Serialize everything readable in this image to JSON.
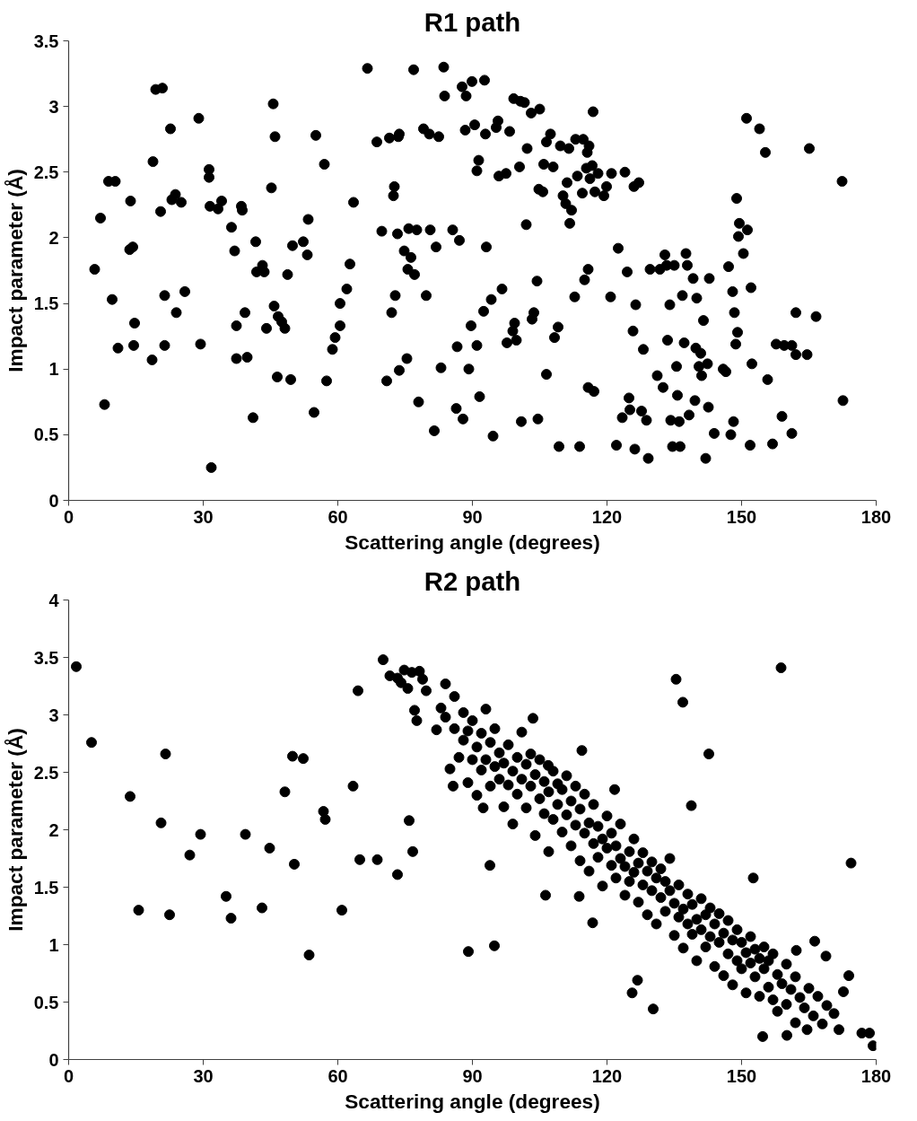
{
  "chart_data": [
    {
      "type": "scatter",
      "title": "R1 path",
      "xlabel": "Scattering angle (degrees)",
      "ylabel": "Impact parameter (Å)",
      "xlim": [
        0,
        180
      ],
      "ylim": [
        0,
        3.5
      ],
      "xticks": [
        0,
        30,
        60,
        90,
        120,
        150,
        180
      ],
      "yticks": [
        0,
        0.5,
        1,
        1.5,
        2,
        2.5,
        3,
        3.5
      ],
      "grid": false,
      "marker": "circle",
      "series": [
        {
          "color": "#000000",
          "x": [
            5.8,
            7.1,
            8.0,
            8.9,
            9.7,
            10.4,
            11.0,
            13.6,
            13.8,
            14.3,
            14.5,
            14.7,
            18.6,
            18.8,
            19.4,
            20.5,
            20.9,
            21.4,
            21.4,
            22.7,
            23.0,
            23.8,
            24.0,
            25.1,
            25.9,
            29.0,
            29.4,
            31.3,
            31.3,
            31.5,
            31.8,
            33.3,
            34.1,
            36.3,
            37.0,
            37.4,
            37.4,
            38.5,
            38.7,
            39.3,
            39.8,
            41.1,
            41.7,
            41.9,
            43.2,
            43.6,
            44.1,
            45.2,
            45.6,
            45.8,
            46.0,
            46.5,
            46.7,
            47.5,
            48.2,
            48.8,
            49.5,
            49.9,
            52.3,
            53.2,
            53.4,
            54.7,
            55.1,
            57.0,
            57.5,
            58.8,
            59.4,
            60.5,
            60.5,
            62.0,
            62.7,
            63.5,
            66.6,
            68.7,
            69.8,
            70.9,
            71.5,
            72.0,
            72.4,
            72.6,
            72.8,
            73.3,
            73.5,
            73.7,
            73.7,
            74.8,
            75.4,
            75.6,
            75.8,
            76.3,
            76.9,
            77.1,
            77.6,
            78.0,
            79.1,
            79.7,
            80.4,
            80.6,
            81.5,
            81.9,
            82.5,
            83.0,
            83.6,
            83.8,
            85.6,
            86.4,
            86.6,
            87.1,
            87.7,
            87.9,
            88.4,
            88.6,
            89.2,
            89.7,
            89.9,
            90.5,
            91.0,
            91.0,
            91.4,
            91.6,
            92.5,
            92.7,
            92.9,
            93.1,
            94.2,
            94.6,
            95.3,
            95.7,
            95.9,
            96.6,
            97.5,
            97.7,
            98.3,
            99.0,
            99.2,
            99.4,
            99.8,
            100.5,
            100.7,
            100.9,
            101.6,
            102.0,
            102.2,
            103.1,
            103.3,
            103.7,
            104.4,
            104.6,
            104.8,
            105.0,
            105.7,
            105.9,
            106.5,
            106.5,
            107.4,
            108.0,
            108.3,
            109.1,
            109.3,
            109.6,
            110.2,
            110.8,
            111.1,
            111.5,
            111.7,
            112.1,
            112.8,
            113.0,
            113.4,
            113.9,
            114.5,
            114.7,
            115.0,
            115.4,
            115.6,
            115.8,
            115.8,
            116.0,
            116.2,
            116.7,
            116.9,
            117.1,
            117.3,
            118.0,
            119.3,
            119.9,
            120.8,
            121.0,
            122.1,
            122.5,
            123.4,
            124.0,
            124.5,
            124.9,
            125.1,
            125.8,
            126.0,
            126.2,
            126.4,
            127.1,
            127.7,
            128.1,
            128.8,
            129.2,
            129.6,
            131.2,
            131.8,
            132.5,
            132.9,
            133.3,
            133.5,
            134.0,
            134.2,
            134.6,
            135.0,
            135.5,
            135.7,
            136.1,
            136.3,
            136.8,
            137.2,
            137.6,
            137.9,
            138.3,
            139.2,
            139.6,
            139.8,
            140.0,
            140.5,
            140.9,
            141.1,
            141.5,
            142.0,
            142.4,
            142.6,
            142.8,
            143.9,
            145.9,
            146.5,
            147.1,
            147.6,
            148.0,
            148.2,
            148.4,
            148.7,
            148.9,
            149.1,
            149.3,
            149.5,
            150.4,
            151.1,
            151.3,
            151.9,
            152.1,
            152.3,
            154.0,
            155.3,
            155.8,
            156.9,
            157.7,
            159.0,
            159.5,
            161.2,
            161.2,
            162.1,
            162.1,
            164.6,
            165.1,
            166.6,
            172.4,
            172.6
          ],
          "values": [
            1.76,
            2.15,
            0.73,
            2.43,
            1.53,
            2.43,
            1.16,
            1.91,
            2.28,
            1.93,
            1.18,
            1.35,
            1.07,
            2.58,
            3.13,
            2.2,
            3.14,
            1.56,
            1.18,
            2.83,
            2.29,
            2.33,
            1.43,
            2.27,
            1.59,
            2.91,
            1.19,
            2.52,
            2.46,
            2.24,
            0.25,
            2.22,
            2.28,
            2.08,
            1.9,
            1.33,
            1.08,
            2.24,
            2.21,
            1.43,
            1.09,
            0.63,
            1.97,
            1.74,
            1.79,
            1.74,
            1.31,
            2.38,
            3.02,
            1.48,
            2.77,
            0.94,
            1.4,
            1.36,
            1.31,
            1.72,
            0.92,
            1.94,
            1.97,
            1.87,
            2.14,
            0.67,
            2.78,
            2.56,
            0.91,
            1.15,
            1.24,
            1.33,
            1.5,
            1.61,
            1.8,
            2.27,
            3.29,
            2.73,
            2.05,
            0.91,
            2.76,
            1.43,
            2.32,
            2.39,
            1.56,
            2.03,
            2.77,
            2.79,
            0.99,
            1.9,
            1.08,
            1.76,
            2.07,
            1.85,
            3.28,
            1.72,
            2.06,
            0.75,
            2.83,
            1.56,
            2.79,
            2.06,
            0.53,
            1.93,
            2.77,
            1.01,
            3.3,
            3.08,
            2.06,
            0.7,
            1.17,
            1.98,
            3.15,
            0.62,
            2.82,
            3.08,
            1.0,
            1.33,
            3.19,
            2.86,
            1.18,
            2.51,
            2.59,
            0.79,
            1.44,
            3.2,
            2.79,
            1.93,
            1.53,
            0.49,
            2.84,
            2.89,
            2.47,
            1.61,
            2.49,
            1.2,
            2.81,
            1.29,
            3.06,
            1.35,
            1.22,
            2.54,
            3.04,
            0.6,
            3.03,
            2.1,
            2.68,
            2.95,
            1.38,
            1.43,
            1.67,
            0.62,
            2.37,
            2.98,
            2.35,
            2.56,
            2.73,
            0.96,
            2.79,
            2.54,
            1.24,
            1.32,
            0.41,
            2.7,
            2.32,
            2.26,
            2.42,
            2.68,
            2.11,
            2.21,
            1.55,
            2.75,
            2.47,
            0.41,
            2.34,
            2.75,
            1.68,
            2.53,
            2.65,
            0.86,
            1.76,
            2.7,
            2.45,
            2.55,
            2.96,
            0.83,
            2.35,
            2.49,
            2.32,
            2.39,
            1.55,
            2.49,
            0.42,
            1.92,
            0.63,
            2.5,
            1.74,
            0.78,
            0.69,
            1.29,
            2.39,
            0.39,
            1.49,
            2.42,
            0.68,
            1.15,
            0.61,
            0.32,
            1.76,
            0.95,
            1.76,
            0.86,
            1.87,
            1.79,
            1.22,
            1.49,
            0.61,
            0.41,
            1.79,
            1.02,
            0.8,
            0.6,
            0.41,
            1.56,
            1.2,
            1.88,
            1.79,
            0.65,
            1.69,
            0.76,
            1.16,
            1.54,
            1.02,
            1.12,
            0.95,
            1.37,
            0.32,
            1.04,
            0.71,
            1.69,
            0.51,
            1.0,
            0.98,
            1.78,
            0.5,
            1.59,
            0.6,
            1.43,
            1.19,
            2.3,
            1.28,
            2.01,
            2.11,
            1.88,
            2.91,
            2.06,
            0.42,
            1.62,
            1.04,
            2.83,
            2.65,
            0.92,
            0.43,
            1.19,
            0.64,
            1.18,
            0.51,
            1.18,
            1.43,
            1.11,
            1.11,
            2.68,
            1.4,
            2.43,
            0.76
          ]
        }
      ]
    },
    {
      "type": "scatter",
      "title": "R2 path",
      "xlabel": "Scattering angle (degrees)",
      "ylabel": "Impact parameter (Å)",
      "xlim": [
        0,
        180
      ],
      "ylim": [
        0,
        4
      ],
      "xticks": [
        0,
        30,
        60,
        90,
        120,
        150,
        180
      ],
      "yticks": [
        0,
        0.5,
        1,
        1.5,
        2,
        2.5,
        3,
        3.5,
        4
      ],
      "grid": false,
      "marker": "circle",
      "series": [
        {
          "color": "#000000",
          "x": [
            1.7,
            5.1,
            13.7,
            15.6,
            20.6,
            21.6,
            22.5,
            27.0,
            29.4,
            35.1,
            36.2,
            39.4,
            43.1,
            44.8,
            48.2,
            49.9,
            50.3,
            52.3,
            53.6,
            56.8,
            57.2,
            60.9,
            63.4,
            64.5,
            64.9,
            68.8,
            70.1,
            71.6,
            73.3,
            73.3,
            74.1,
            74.8,
            75.6,
            75.9,
            76.5,
            76.7,
            77.1,
            77.6,
            78.2,
            78.9,
            79.7,
            89.1,
            94.9,
            135.4,
            136.9,
            142.7,
            158.8,
            174.4,
            125.6,
            126.8,
            130.3,
            106.3,
            93.9,
            92.4,
            85.7,
            106.9,
            103.5,
            114.4,
            113.8,
            121.7,
            116.8,
            138.8,
            152.6,
            178.5,
            179.3,
            176.8,
            172.7,
            170.6,
            171.7,
            160.1,
            154.7,
            162.0,
            166.3,
            164.6,
            173.9,
            168.8,
            162.2,
            82,
            83,
            84,
            84,
            85,
            86,
            86,
            87,
            88,
            88,
            89,
            89,
            90,
            90,
            91,
            91,
            92,
            92,
            93,
            93,
            94,
            94,
            95,
            95,
            96,
            96,
            97,
            97,
            98,
            98,
            99,
            99,
            100,
            100,
            101,
            101,
            102,
            102,
            103,
            103,
            104,
            104,
            105,
            105,
            106,
            106,
            107,
            107,
            108,
            108,
            109,
            109,
            110,
            110,
            111,
            111,
            112,
            112,
            113,
            113,
            114,
            114,
            115,
            115,
            116,
            116,
            117,
            117,
            118,
            118,
            119,
            119,
            120,
            120,
            121,
            121,
            122,
            122,
            123,
            123,
            124,
            124,
            125,
            125,
            126,
            126,
            127,
            127,
            128,
            128,
            129,
            129,
            130,
            130,
            131,
            131,
            132,
            132,
            133,
            133,
            134,
            134,
            135,
            135,
            136,
            136,
            137,
            137,
            138,
            138,
            139,
            139,
            140,
            140,
            141,
            141,
            142,
            142,
            143,
            143,
            144,
            144,
            145,
            145,
            146,
            146,
            147,
            147,
            148,
            148,
            149,
            149,
            150,
            150,
            151,
            151,
            152,
            152,
            153,
            153,
            154,
            154,
            155,
            155,
            156,
            156,
            157,
            157,
            158,
            158,
            159,
            160,
            160,
            161,
            162,
            163,
            164,
            165,
            166,
            167,
            168,
            169
          ],
          "values": [
            3.42,
            2.76,
            2.29,
            1.3,
            2.06,
            2.66,
            1.26,
            1.78,
            1.96,
            1.42,
            1.23,
            1.96,
            1.32,
            1.84,
            2.33,
            2.64,
            1.7,
            2.62,
            0.91,
            2.16,
            2.09,
            1.3,
            2.38,
            3.21,
            1.74,
            1.74,
            3.48,
            3.34,
            1.61,
            3.32,
            3.28,
            3.39,
            3.23,
            2.08,
            3.37,
            1.81,
            3.04,
            2.95,
            3.38,
            3.31,
            3.21,
            0.94,
            0.99,
            3.31,
            3.11,
            2.66,
            3.41,
            1.71,
            0.58,
            0.69,
            0.44,
            1.43,
            1.69,
            2.19,
            2.38,
            2.56,
            2.97,
            2.69,
            1.42,
            2.35,
            1.19,
            2.21,
            1.58,
            0.23,
            0.12,
            0.23,
            0.59,
            0.4,
            0.26,
            0.21,
            0.2,
            0.32,
            1.03,
            0.26,
            0.73,
            0.9,
            0.95,
            2.87,
            3.06,
            2.98,
            3.27,
            2.53,
            2.88,
            3.16,
            2.63,
            2.78,
            3.02,
            2.41,
            2.86,
            2.61,
            2.95,
            2.72,
            2.3,
            2.84,
            2.52,
            3.05,
            2.61,
            2.38,
            2.76,
            2.55,
            2.88,
            2.44,
            2.67,
            2.2,
            2.58,
            2.74,
            2.39,
            2.51,
            2.05,
            2.63,
            2.31,
            2.44,
            2.85,
            2.19,
            2.57,
            2.38,
            2.66,
            1.95,
            2.48,
            2.27,
            2.61,
            2.14,
            2.42,
            2.33,
            1.81,
            2.51,
            2.09,
            2.22,
            2.4,
            1.98,
            2.35,
            2.13,
            2.47,
            1.86,
            2.25,
            2.04,
            2.38,
            1.73,
            2.18,
            1.97,
            2.31,
            2.06,
            1.64,
            1.88,
            2.22,
            1.76,
            2.03,
            1.92,
            1.51,
            1.84,
            2.12,
            1.69,
            1.97,
            1.58,
            1.86,
            1.75,
            2.05,
            1.43,
            1.68,
            1.81,
            1.55,
            1.63,
            1.92,
            1.37,
            1.71,
            1.52,
            1.8,
            1.64,
            1.26,
            1.47,
            1.72,
            1.58,
            1.18,
            1.41,
            1.66,
            1.29,
            1.55,
            1.47,
            1.75,
            1.08,
            1.36,
            1.24,
            1.52,
            1.31,
            0.97,
            1.18,
            1.44,
            1.09,
            1.35,
            1.22,
            0.86,
            1.13,
            1.4,
            0.98,
            1.26,
            1.07,
            1.32,
            0.81,
            1.18,
            1.02,
            1.27,
            0.73,
            1.1,
            0.92,
            1.21,
            0.65,
            1.04,
            0.86,
            1.13,
            0.79,
            1.02,
            0.58,
            0.93,
            0.84,
            1.07,
            0.72,
            0.96,
            0.55,
            0.88,
            0.79,
            0.98,
            0.63,
            0.86,
            0.52,
            0.92,
            0.74,
            0.42,
            0.66,
            0.83,
            0.48,
            0.61,
            0.72,
            0.54,
            0.45,
            0.62,
            0.38,
            0.55,
            0.31,
            0.47
          ]
        }
      ]
    }
  ]
}
